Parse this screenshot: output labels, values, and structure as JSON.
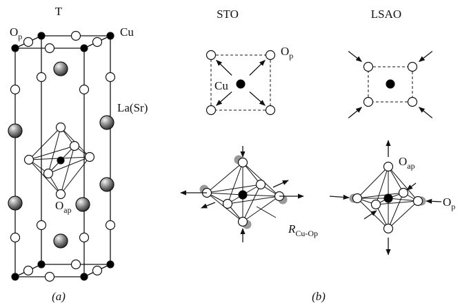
{
  "panel_a": {
    "title": "T",
    "labels": [
      {
        "text": "O",
        "sub": "p"
      },
      {
        "text": "Cu"
      },
      {
        "text": "La(Sr)"
      },
      {
        "text": "O",
        "sub": "ap"
      }
    ],
    "caption": "(a)"
  },
  "panel_b": {
    "sto": {
      "title": "STO",
      "labels": [
        {
          "text": "O",
          "sub": "p"
        },
        {
          "text": "Cu"
        },
        {
          "text": "R",
          "sub": "Cu-Op"
        }
      ]
    },
    "lsao": {
      "title": "LSAO",
      "labels": [
        {
          "text": "O",
          "sub": "ap"
        },
        {
          "text": "O",
          "sub": "p"
        }
      ]
    },
    "caption": "(b)"
  }
}
